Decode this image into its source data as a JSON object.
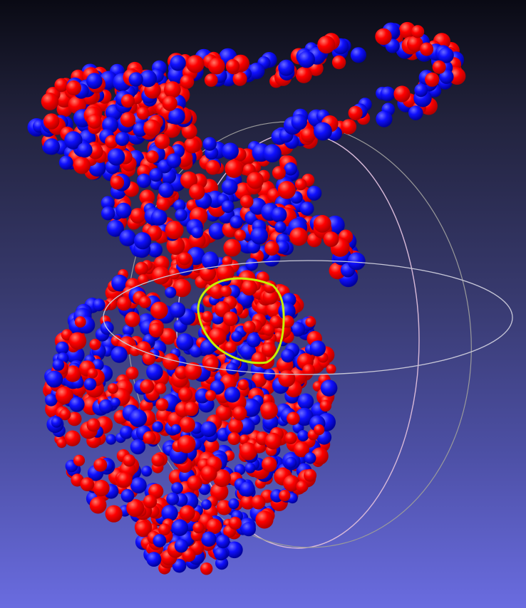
{
  "viewport": {
    "background_top": "#0a0a14",
    "background_bottom": "#6a6ce0"
  },
  "point_cloud": {
    "colors": [
      "#ff0000",
      "#1a1aff"
    ]
  },
  "trackball": {
    "ring_colors": [
      "#d8b9d8",
      "#9a9a9a",
      "#c8c8d8"
    ]
  },
  "selection_lasso": {
    "color": "#c8f000"
  }
}
